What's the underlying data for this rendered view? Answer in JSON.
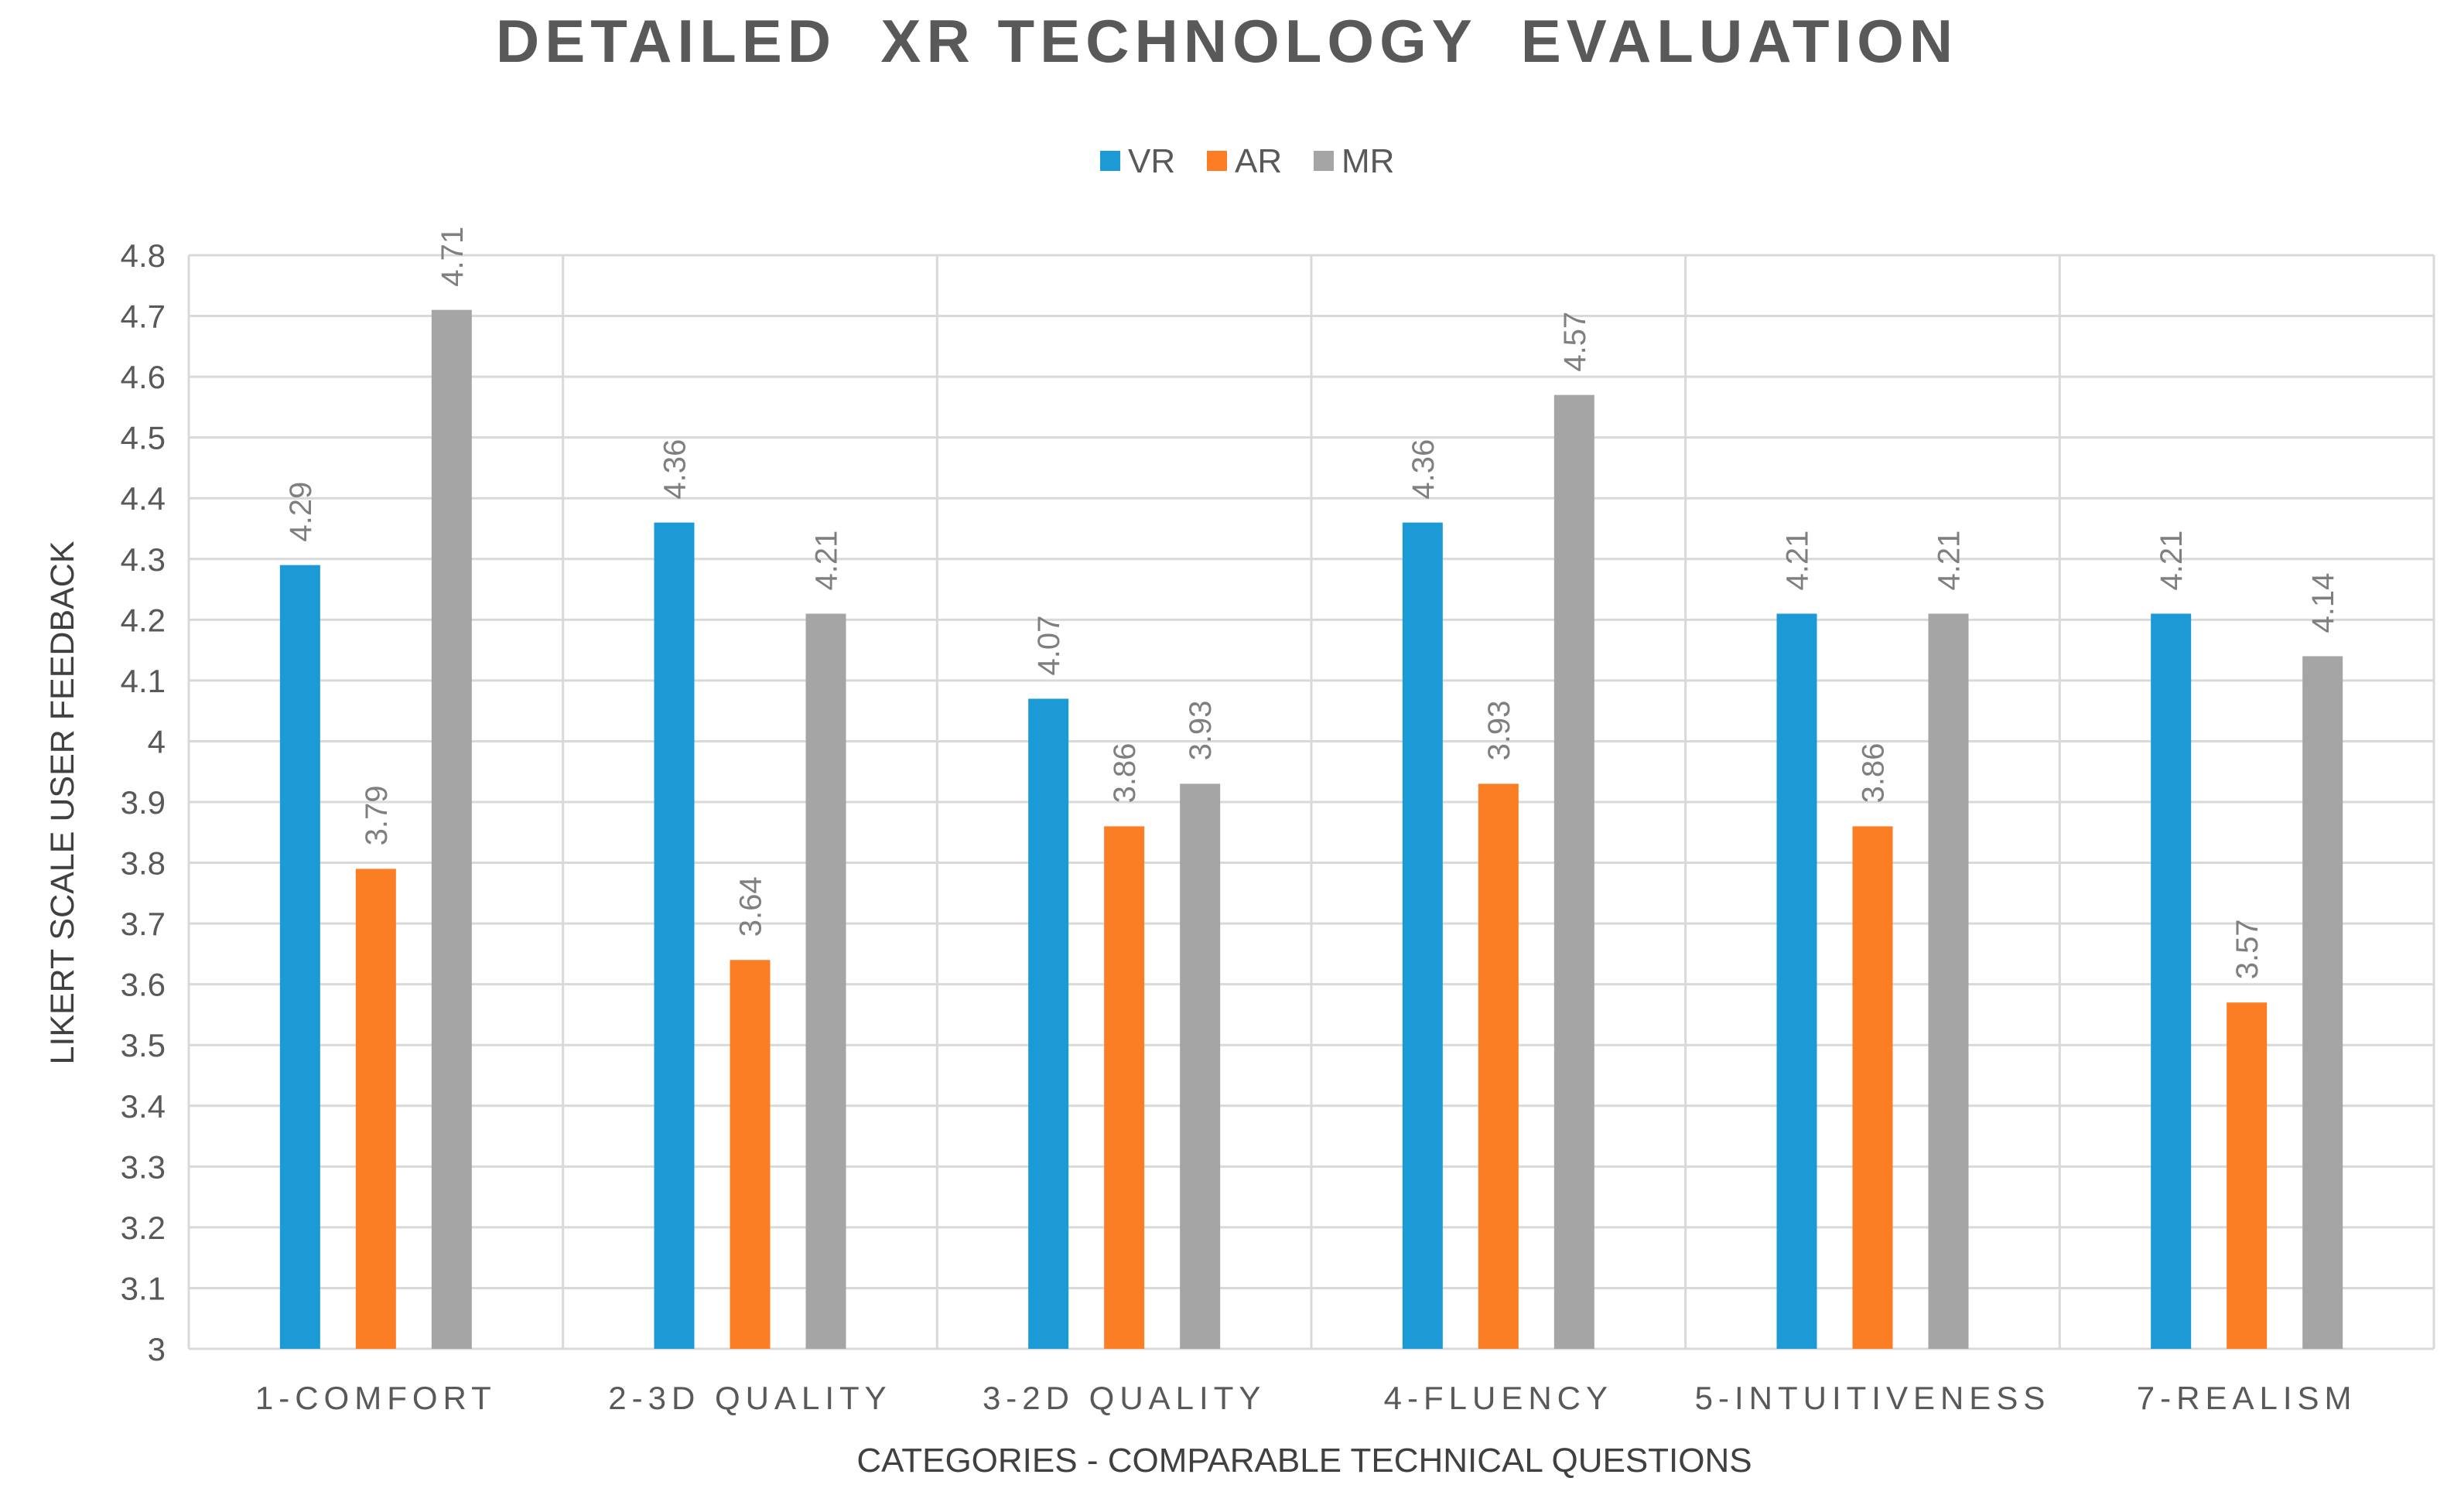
{
  "chart_data": {
    "type": "bar",
    "title": "DETAILED  XR TECHNOLOGY  EVALUATION",
    "xlabel": "CATEGORIES - COMPARABLE TECHNICAL QUESTIONS",
    "ylabel": "LIKERT SCALE USER FEEDBACK",
    "categories": [
      "1-COMFORT",
      "2-3D QUALITY",
      "3-2D QUALITY",
      "4-FLUENCY",
      "5-INTUITIVENESS",
      "7-REALISM"
    ],
    "series": [
      {
        "name": "VR",
        "color": "#1b9ad6",
        "values": [
          4.29,
          4.36,
          4.07,
          4.36,
          4.21,
          4.21
        ]
      },
      {
        "name": "AR",
        "color": "#fb7d24",
        "values": [
          3.79,
          3.64,
          3.86,
          3.93,
          3.86,
          3.57
        ]
      },
      {
        "name": "MR",
        "color": "#a5a5a5",
        "values": [
          4.71,
          4.21,
          3.93,
          4.57,
          4.21,
          4.14
        ]
      }
    ],
    "ylim": [
      3,
      4.8
    ],
    "ytick_step": 0.1,
    "grid": true,
    "legend_position": "top-center",
    "data_labels": true
  }
}
